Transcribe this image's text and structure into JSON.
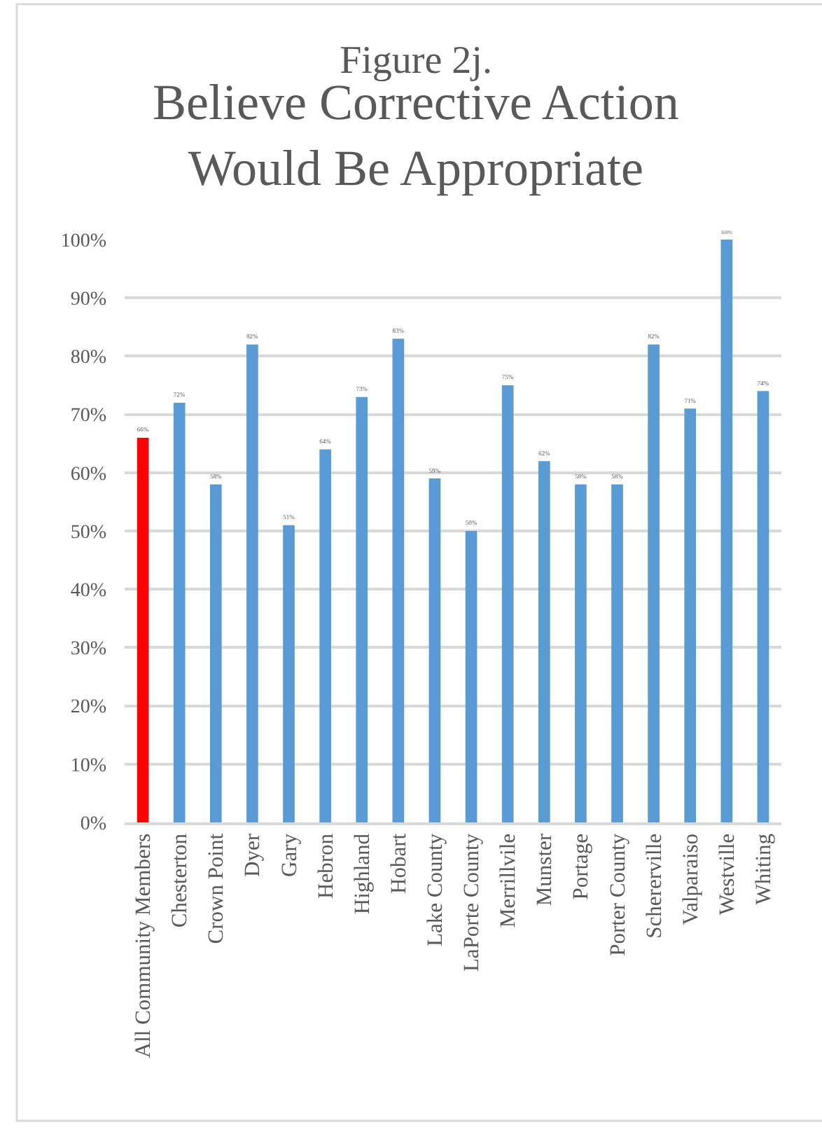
{
  "chart_data": {
    "type": "bar",
    "title": "Figure 2j.",
    "subtitle": "Believe Corrective Action Would Be Appropriate",
    "categories": [
      "All Community Members",
      "Chesterton",
      "Crown Point",
      "Dyer",
      "Gary",
      "Hebron",
      "Highland",
      "Hobart",
      "Lake County",
      "LaPorte County",
      "Merrillvile",
      "Munster",
      "Portage",
      "Porter County",
      "Schererville",
      "Valparaiso",
      "Westville",
      "Whiting"
    ],
    "values": [
      66,
      72,
      58,
      82,
      51,
      64,
      73,
      83,
      59,
      50,
      75,
      62,
      58,
      58,
      82,
      71,
      100,
      74
    ],
    "colors": [
      "#ff0000",
      "#5b9bd5",
      "#5b9bd5",
      "#5b9bd5",
      "#5b9bd5",
      "#5b9bd5",
      "#5b9bd5",
      "#5b9bd5",
      "#5b9bd5",
      "#5b9bd5",
      "#5b9bd5",
      "#5b9bd5",
      "#5b9bd5",
      "#5b9bd5",
      "#5b9bd5",
      "#5b9bd5",
      "#5b9bd5",
      "#5b9bd5"
    ],
    "value_labels": [
      "66%",
      "72%",
      "58%",
      "82%",
      "51%",
      "64%",
      "73%",
      "83%",
      "59%",
      "50%",
      "75%",
      "62%",
      "58%",
      "58%",
      "82%",
      "71%",
      "100%",
      "74%"
    ],
    "ylim": [
      0,
      100
    ],
    "yticks": [
      {
        "value": 0,
        "label": "0%"
      },
      {
        "value": 10,
        "label": "10%"
      },
      {
        "value": 20,
        "label": "20%"
      },
      {
        "value": 30,
        "label": "30%"
      },
      {
        "value": 40,
        "label": "40%"
      },
      {
        "value": 50,
        "label": "50%"
      },
      {
        "value": 60,
        "label": "60%"
      },
      {
        "value": 70,
        "label": "70%"
      },
      {
        "value": 80,
        "label": "80%"
      },
      {
        "value": 90,
        "label": "90%"
      },
      {
        "value": 100,
        "label": "100%"
      }
    ],
    "grid": "y"
  }
}
